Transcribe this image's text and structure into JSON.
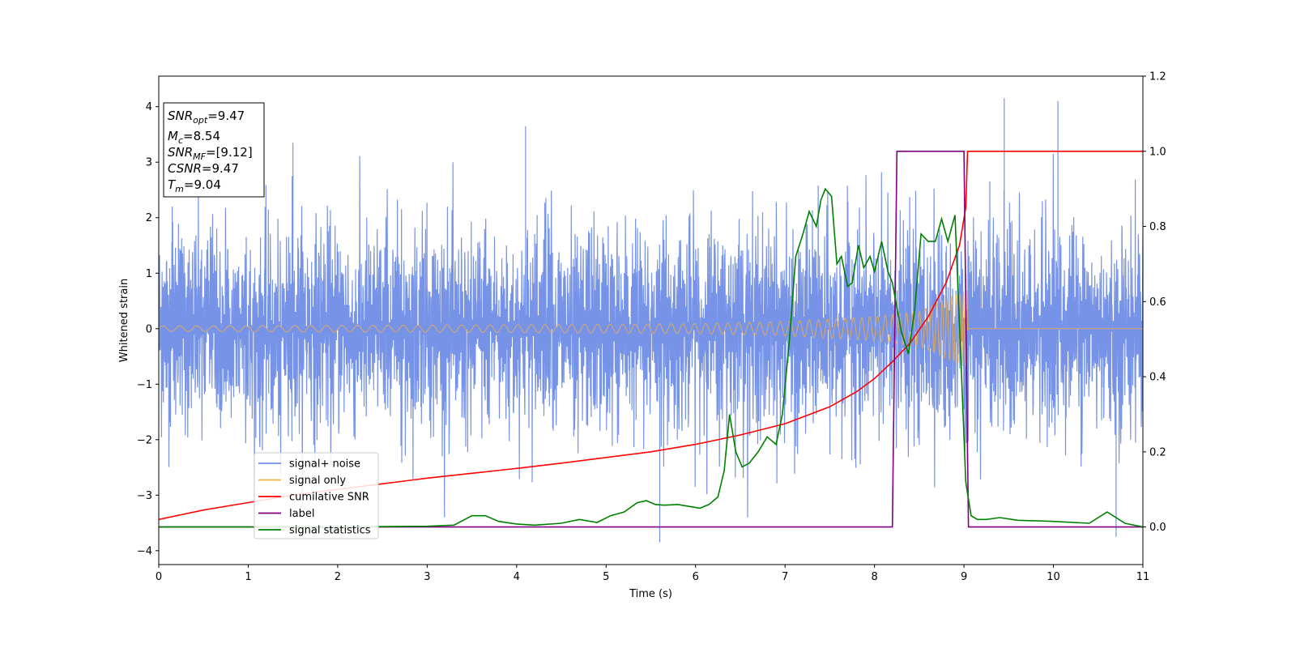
{
  "chart_data": {
    "type": "line",
    "xlabel": "Time (s)",
    "ylabel": "Whitened strain",
    "xlim": [
      0,
      11
    ],
    "ylim_left": [
      -4.25,
      4.55
    ],
    "ylim_right": [
      -0.1,
      1.2
    ],
    "x_ticks": [
      "0",
      "1",
      "2",
      "3",
      "4",
      "5",
      "6",
      "7",
      "8",
      "9",
      "10",
      "11"
    ],
    "y_ticks_left": [
      "−4",
      "−3",
      "−2",
      "−1",
      "0",
      "1",
      "2",
      "3",
      "4"
    ],
    "y_ticks_right": [
      "0.0",
      "0.2",
      "0.4",
      "0.6",
      "0.8",
      "1.0",
      "1.2"
    ],
    "grid": false,
    "legend_position": "lower-left",
    "annotation": {
      "lines": [
        {
          "base": "SNR",
          "sub": "opt",
          "value": "=9.47"
        },
        {
          "base": "M",
          "sub": "c",
          "value": "=8.54"
        },
        {
          "base": "SNR",
          "sub": "MF",
          "value": "=[9.12]"
        },
        {
          "base": "CSNR",
          "sub": "",
          "value": "=9.47"
        },
        {
          "base": "T",
          "sub": "m",
          "value": "=9.04"
        }
      ]
    },
    "series": [
      {
        "name": "signal+ noise",
        "axis": "left",
        "color": "#6f8de6",
        "style": "noise",
        "envelope_approx": [
          -2.6,
          2.6
        ],
        "peak_values_approx": [
          [
            0.15,
            2.2
          ],
          [
            1.5,
            3.35
          ],
          [
            4.1,
            3.65
          ],
          [
            5.6,
            -3.85
          ],
          [
            9.45,
            4.15
          ],
          [
            10.05,
            4.1
          ],
          [
            10.7,
            -3.75
          ]
        ]
      },
      {
        "name": "signal only",
        "axis": "left",
        "color": "#f5b041",
        "style": "chirp",
        "amplitude_approx": [
          [
            0,
            0.05
          ],
          [
            4,
            0.07
          ],
          [
            6,
            0.09
          ],
          [
            7,
            0.13
          ],
          [
            8,
            0.22
          ],
          [
            8.5,
            0.32
          ],
          [
            9.04,
            0.7
          ]
        ],
        "end_time": 9.04
      },
      {
        "name": "cumilative SNR",
        "axis": "right",
        "color": "#ff0000",
        "x": [
          0,
          0.5,
          1,
          1.5,
          2,
          2.5,
          3,
          3.5,
          4,
          4.5,
          5,
          5.5,
          6,
          6.5,
          7,
          7.5,
          7.8,
          8,
          8.2,
          8.4,
          8.6,
          8.8,
          8.95,
          9.02,
          9.04,
          9.5,
          10,
          11
        ],
        "values": [
          0.02,
          0.045,
          0.065,
          0.085,
          0.1,
          0.115,
          0.13,
          0.143,
          0.156,
          0.17,
          0.185,
          0.2,
          0.22,
          0.245,
          0.275,
          0.32,
          0.36,
          0.395,
          0.44,
          0.49,
          0.56,
          0.65,
          0.75,
          0.85,
          1.0,
          1.0,
          1.0,
          1.0
        ]
      },
      {
        "name": "label",
        "axis": "right",
        "color": "#800080",
        "x": [
          0,
          8.2,
          8.25,
          9.0,
          9.05,
          11
        ],
        "values": [
          0.0,
          0.0,
          1.0,
          1.0,
          0.0,
          0.0
        ]
      },
      {
        "name": "signal statistics",
        "axis": "right",
        "color": "#008000",
        "x": [
          0,
          1,
          2,
          3,
          3.3,
          3.5,
          3.65,
          3.8,
          4.0,
          4.2,
          4.5,
          4.7,
          4.9,
          5.05,
          5.2,
          5.35,
          5.45,
          5.55,
          5.65,
          5.8,
          5.92,
          6.05,
          6.15,
          6.25,
          6.32,
          6.38,
          6.45,
          6.52,
          6.6,
          6.7,
          6.8,
          6.9,
          6.97,
          7.05,
          7.12,
          7.2,
          7.27,
          7.35,
          7.4,
          7.45,
          7.52,
          7.58,
          7.63,
          7.7,
          7.75,
          7.82,
          7.88,
          7.95,
          8.0,
          8.08,
          8.15,
          8.2,
          8.3,
          8.38,
          8.45,
          8.52,
          8.6,
          8.68,
          8.75,
          8.82,
          8.9,
          8.96,
          9.02,
          9.08,
          9.15,
          9.25,
          9.4,
          9.6,
          10.0,
          10.4,
          10.6,
          10.8,
          11.0
        ],
        "values": [
          0.0,
          0.0,
          0.0,
          0.002,
          0.005,
          0.03,
          0.03,
          0.015,
          0.008,
          0.005,
          0.01,
          0.02,
          0.012,
          0.03,
          0.04,
          0.065,
          0.07,
          0.06,
          0.058,
          0.06,
          0.055,
          0.05,
          0.06,
          0.08,
          0.15,
          0.3,
          0.2,
          0.16,
          0.17,
          0.2,
          0.24,
          0.22,
          0.3,
          0.5,
          0.72,
          0.78,
          0.84,
          0.8,
          0.87,
          0.9,
          0.88,
          0.7,
          0.72,
          0.64,
          0.65,
          0.75,
          0.69,
          0.72,
          0.68,
          0.76,
          0.68,
          0.65,
          0.52,
          0.46,
          0.58,
          0.78,
          0.76,
          0.76,
          0.82,
          0.76,
          0.83,
          0.48,
          0.12,
          0.03,
          0.02,
          0.02,
          0.025,
          0.018,
          0.015,
          0.01,
          0.04,
          0.01,
          0.0
        ]
      }
    ]
  }
}
